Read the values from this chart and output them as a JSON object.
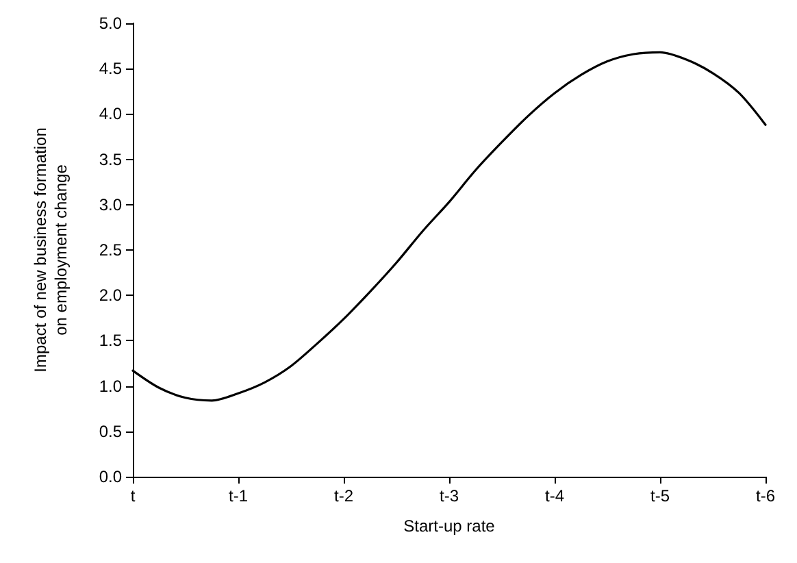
{
  "chart_data": {
    "type": "line",
    "xlabel": "Start-up rate",
    "ylabel": "Impact of new business formation\non employment change",
    "categories": [
      "t",
      null,
      null,
      null,
      "t-1",
      null,
      null,
      null,
      "t-2",
      null,
      null,
      null,
      "t-3",
      null,
      null,
      null,
      "t-4",
      null,
      null,
      null,
      "t-5",
      null,
      null,
      null,
      "t-6"
    ],
    "series": [
      {
        "color": "#000000",
        "values": [
          1.17,
          0.98,
          0.87,
          0.84,
          0.92,
          1.04,
          1.22,
          1.47,
          1.74,
          2.04,
          2.36,
          2.71,
          3.03,
          3.38,
          3.69,
          3.98,
          4.23,
          4.43,
          4.58,
          4.66,
          4.68,
          4.6,
          4.45,
          4.23,
          3.88
        ]
      }
    ],
    "ylim": [
      0,
      5
    ],
    "yticks": [
      {
        "value": 0,
        "label": "0.0"
      },
      {
        "value": 0.5,
        "label": "0.5"
      },
      {
        "value": 1,
        "label": "1.0"
      },
      {
        "value": 1.5,
        "label": "1.5"
      },
      {
        "value": 2,
        "label": "2.0"
      },
      {
        "value": 2.5,
        "label": "2.5"
      },
      {
        "value": 3,
        "label": "3.0"
      },
      {
        "value": 3.5,
        "label": "3.5"
      },
      {
        "value": 4,
        "label": "4.0"
      },
      {
        "value": 4.5,
        "label": "4.5"
      },
      {
        "value": 5,
        "label": "5.0"
      }
    ],
    "grid": false,
    "marker": "none",
    "line_style": "solid"
  }
}
